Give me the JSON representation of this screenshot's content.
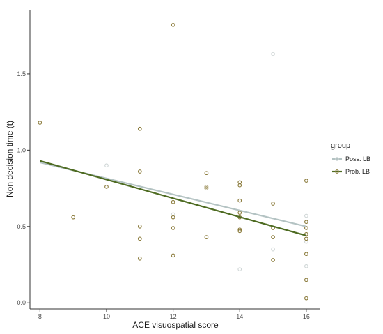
{
  "chart_data": {
    "type": "scatter",
    "xlabel": "ACE visuospatial score",
    "ylabel": "Non decision time (t)",
    "xlim": [
      7.7,
      16.4
    ],
    "ylim": [
      -0.04,
      1.92
    ],
    "x_ticks": [
      8,
      10,
      12,
      14,
      16
    ],
    "x_tick_labels": [
      "8",
      "10",
      "12",
      "14",
      "16"
    ],
    "y_ticks": [
      0.0,
      0.5,
      1.0,
      1.5
    ],
    "y_tick_labels": [
      "0.0",
      "0.5",
      "1.0",
      "1.5"
    ],
    "grid": false,
    "legend": {
      "title": "group",
      "position": "right"
    },
    "series": [
      {
        "name": "Poss. LB",
        "color": "#b4c3c3",
        "point_color": "#cfd6d6",
        "points": [
          {
            "x": 10,
            "y": 0.9
          },
          {
            "x": 12,
            "y": 0.58
          },
          {
            "x": 14,
            "y": 0.22
          },
          {
            "x": 15,
            "y": 1.63
          },
          {
            "x": 15,
            "y": 0.35
          },
          {
            "x": 16,
            "y": 0.57
          },
          {
            "x": 16,
            "y": 0.4
          },
          {
            "x": 16,
            "y": 0.24
          }
        ],
        "trend": {
          "x": [
            8,
            16
          ],
          "y": [
            0.92,
            0.5
          ]
        }
      },
      {
        "name": "Prob. LB",
        "color": "#4e6b22",
        "point_color": "#8a7a3a",
        "points": [
          {
            "x": 8,
            "y": 1.18
          },
          {
            "x": 9,
            "y": 0.56
          },
          {
            "x": 10,
            "y": 0.76
          },
          {
            "x": 11,
            "y": 1.14
          },
          {
            "x": 11,
            "y": 0.86
          },
          {
            "x": 11,
            "y": 0.5
          },
          {
            "x": 11,
            "y": 0.42
          },
          {
            "x": 11,
            "y": 0.29
          },
          {
            "x": 12,
            "y": 1.82
          },
          {
            "x": 12,
            "y": 0.66
          },
          {
            "x": 12,
            "y": 0.56
          },
          {
            "x": 12,
            "y": 0.49
          },
          {
            "x": 12,
            "y": 0.31
          },
          {
            "x": 13,
            "y": 0.85
          },
          {
            "x": 13,
            "y": 0.76
          },
          {
            "x": 13,
            "y": 0.75
          },
          {
            "x": 13,
            "y": 0.43
          },
          {
            "x": 14,
            "y": 0.79
          },
          {
            "x": 14,
            "y": 0.77
          },
          {
            "x": 14,
            "y": 0.67
          },
          {
            "x": 14,
            "y": 0.59
          },
          {
            "x": 14,
            "y": 0.56
          },
          {
            "x": 14,
            "y": 0.48
          },
          {
            "x": 14,
            "y": 0.47
          },
          {
            "x": 15,
            "y": 0.65
          },
          {
            "x": 15,
            "y": 0.49
          },
          {
            "x": 15,
            "y": 0.43
          },
          {
            "x": 15,
            "y": 0.28
          },
          {
            "x": 16,
            "y": 0.8
          },
          {
            "x": 16,
            "y": 0.53
          },
          {
            "x": 16,
            "y": 0.49
          },
          {
            "x": 16,
            "y": 0.45
          },
          {
            "x": 16,
            "y": 0.42
          },
          {
            "x": 16,
            "y": 0.32
          },
          {
            "x": 16,
            "y": 0.15
          },
          {
            "x": 16,
            "y": 0.03
          }
        ],
        "trend": {
          "x": [
            8,
            16
          ],
          "y": [
            0.93,
            0.44
          ]
        }
      }
    ]
  }
}
